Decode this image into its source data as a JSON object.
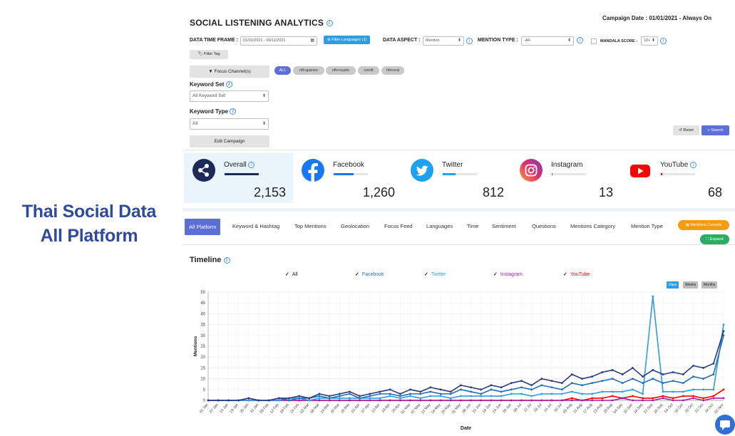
{
  "left_title": {
    "line1": "Thai Social Data",
    "line2": "All Platform"
  },
  "header": {
    "title": "SOCIAL LISTENING ANALYTICS",
    "campaign_date": "Campaign Date : 01/01/2021 - Always On"
  },
  "filters": {
    "data_time_frame_label": "DATA TIME FRAME :",
    "date_range": "01/01/2021 - 06/11/2021",
    "filter_languages": "Filter Languages (1)",
    "data_aspect_label": "DATA ASPECT :",
    "data_aspect_value": "Mention",
    "mention_type_label": "MENTION TYPE :",
    "mention_type_value": "-All-",
    "mandala_score_label": "MANDALA SCORE :",
    "mandala_score_value": "10+",
    "filter_tag": "Filter Tag",
    "focus_channels": "Focus Channel(s)",
    "keyword_set_label": "Keyword Set",
    "keyword_set_value": "All Keyword Set",
    "keyword_type_label": "Keyword Type",
    "keyword_type_value": "All",
    "edit_campaign": "Edit Campaign",
    "reset": "Reset",
    "search": "Search",
    "keyword_pills": [
      "ALL",
      "nft+games",
      "nft+crypto",
      "coinft",
      "nft+nrai"
    ]
  },
  "stats": [
    {
      "name": "Overall",
      "value": "2,153",
      "share": 1.0,
      "color": "#1c2a5a"
    },
    {
      "name": "Facebook",
      "value": "1,260",
      "share": 0.585,
      "color": "#1877f2"
    },
    {
      "name": "Twitter",
      "value": "812",
      "share": 0.377,
      "color": "#1da1f2"
    },
    {
      "name": "Instagram",
      "value": "13",
      "share": 0.006,
      "color": "#c13584"
    },
    {
      "name": "YouTube",
      "value": "68",
      "share": 0.032,
      "color": "#ff0000"
    }
  ],
  "tabs": [
    "All Platform",
    "Keyword & Hashtag",
    "Top Mentions",
    "Geolocation",
    "Focus Feed",
    "Languages",
    "Time",
    "Sentiment",
    "Questions",
    "Mentions Category",
    "Mention Type"
  ],
  "actions": {
    "mentions_console": "Mentions Console",
    "expand": "Expand"
  },
  "timeline": {
    "title": "Timeline",
    "legend": [
      {
        "label": "All",
        "color": "#222222"
      },
      {
        "label": "Facebook",
        "color": "#1f6fb5"
      },
      {
        "label": "Twitter",
        "color": "#2e9ce0"
      },
      {
        "label": "Instagram",
        "color": "#a020a0"
      },
      {
        "label": "YouTube",
        "color": "#ff0000"
      }
    ],
    "granularity": [
      "Days",
      "Weeks",
      "Months"
    ]
  },
  "chart_data": {
    "type": "line",
    "xlabel": "Date",
    "ylabel": "Mentions",
    "ylim": [
      0,
      50
    ],
    "yticks": [
      0,
      5,
      10,
      15,
      20,
      25,
      30,
      35,
      40,
      45,
      50
    ],
    "xticks": [
      "01 Jan",
      "07 Jan",
      "13 Jan",
      "19 Jan",
      "25 Jan",
      "31 Jan",
      "06 Feb",
      "12 Feb",
      "18 Feb",
      "24 Feb",
      "02 Mar",
      "08 Mar",
      "14 Mar",
      "20 Mar",
      "26 Mar",
      "01 Apr",
      "07 Apr",
      "13 Apr",
      "19 Apr",
      "25 Apr",
      "01 May",
      "07 May",
      "13 May",
      "19 May",
      "25 May",
      "31 May",
      "06 Jun",
      "12 Jun",
      "18 Jun",
      "24 Jun",
      "30 Jun",
      "06 Jul",
      "12 Jul",
      "18 Jul",
      "24 Jul",
      "30 Jul",
      "05 Aug",
      "11 Aug",
      "17 Aug",
      "23 Aug",
      "29 Aug",
      "04 Sep",
      "10 Sep",
      "16 Sep",
      "22 Sep",
      "28 Sep",
      "04 Oct",
      "10 Oct",
      "16 Oct",
      "22 Oct",
      "28 Oct",
      "03 Nov"
    ],
    "series": [
      {
        "name": "All",
        "color": "#2b3a7a",
        "values": [
          0,
          0,
          0,
          0,
          1,
          0,
          0,
          1,
          1,
          2,
          1,
          3,
          2,
          3,
          4,
          2,
          3,
          4,
          5,
          3,
          5,
          4,
          6,
          5,
          4,
          7,
          6,
          5,
          7,
          6,
          8,
          9,
          7,
          10,
          9,
          8,
          12,
          10,
          11,
          13,
          14,
          12,
          15,
          11,
          14,
          12,
          13,
          12,
          16,
          15,
          17,
          32
        ]
      },
      {
        "name": "Facebook",
        "color": "#1f6fb5",
        "values": [
          0,
          0,
          0,
          0,
          1,
          0,
          0,
          1,
          0,
          1,
          1,
          2,
          1,
          2,
          3,
          1,
          2,
          3,
          3,
          2,
          3,
          3,
          4,
          3,
          3,
          5,
          4,
          3,
          5,
          4,
          5,
          6,
          5,
          7,
          6,
          5,
          8,
          7,
          8,
          9,
          10,
          8,
          10,
          8,
          10,
          8,
          9,
          8,
          11,
          10,
          12,
          30
        ]
      },
      {
        "name": "Twitter",
        "color": "#2e9ce0",
        "values": [
          0,
          0,
          0,
          0,
          0,
          0,
          0,
          0,
          1,
          1,
          0,
          1,
          1,
          1,
          1,
          1,
          1,
          1,
          2,
          1,
          2,
          1,
          2,
          2,
          1,
          2,
          2,
          2,
          2,
          2,
          3,
          3,
          2,
          3,
          3,
          3,
          4,
          3,
          3,
          4,
          4,
          4,
          5,
          3,
          48,
          4,
          4,
          4,
          5,
          5,
          5,
          35
        ]
      },
      {
        "name": "Instagram",
        "color": "#a020a0",
        "values": [
          0,
          0,
          0,
          0,
          0,
          0,
          0,
          0,
          0,
          0,
          0,
          0,
          0,
          0,
          0,
          0,
          0,
          0,
          0,
          0,
          0,
          0,
          0,
          0,
          0,
          0,
          0,
          0,
          0,
          0,
          0,
          0,
          0,
          0,
          0,
          0,
          0,
          0,
          0,
          0,
          0,
          1,
          0,
          0,
          0,
          1,
          0,
          0,
          1,
          0,
          1,
          1
        ]
      },
      {
        "name": "YouTube",
        "color": "#ff0000",
        "values": [
          0,
          0,
          0,
          0,
          0,
          0,
          0,
          0,
          0,
          0,
          0,
          0,
          0,
          0,
          0,
          0,
          0,
          0,
          0,
          0,
          0,
          0,
          0,
          0,
          0,
          0,
          0,
          0,
          0,
          0,
          0,
          0,
          0,
          0,
          0,
          0,
          1,
          0,
          1,
          1,
          2,
          1,
          2,
          1,
          1,
          2,
          1,
          2,
          2,
          1,
          2,
          5
        ]
      }
    ]
  }
}
